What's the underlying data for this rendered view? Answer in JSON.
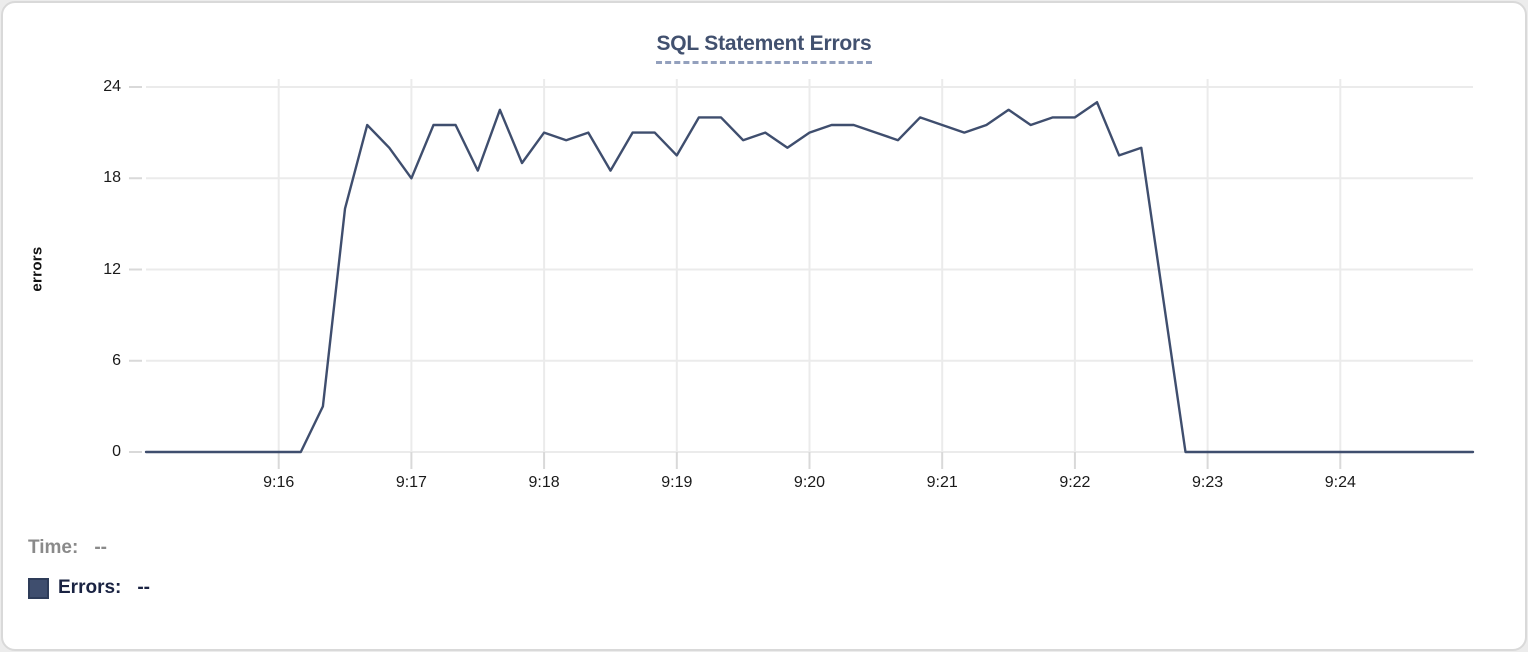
{
  "panel": {
    "title": "SQL Statement Errors"
  },
  "legend": {
    "time_label": "Time:",
    "time_value": "--",
    "errors_label": "Errors:",
    "errors_value": "--"
  },
  "colors": {
    "line": "#3f4e6e",
    "grid": "#ebebeb",
    "tick": "#d9d9d9",
    "axis_text": "#1a1a1a",
    "title": "#42516f",
    "title_underline": "#93a0bd",
    "legend_time": "#8a8a8a",
    "legend_errors": "#1a2342",
    "swatch_fill": "#3f4e6e",
    "swatch_border": "#2e3c59"
  },
  "chart_data": {
    "type": "line",
    "title": "SQL Statement Errors",
    "xlabel": "",
    "ylabel": "errors",
    "ylim": [
      0,
      24
    ],
    "y_ticks": [
      0,
      6,
      12,
      18,
      24
    ],
    "x_tick_labels": [
      "9:16",
      "9:17",
      "9:18",
      "9:19",
      "9:20",
      "9:21",
      "9:22",
      "9:23",
      "9:24"
    ],
    "x_range": [
      "9:15:00",
      "9:25:00"
    ],
    "grid": true,
    "legend_position": "bottom-left",
    "series": [
      {
        "name": "Errors",
        "x": [
          "9:15:00",
          "9:15:10",
          "9:15:20",
          "9:15:30",
          "9:15:40",
          "9:15:50",
          "9:16:00",
          "9:16:10",
          "9:16:20",
          "9:16:30",
          "9:16:40",
          "9:16:50",
          "9:17:00",
          "9:17:10",
          "9:17:20",
          "9:17:30",
          "9:17:40",
          "9:17:50",
          "9:18:00",
          "9:18:10",
          "9:18:20",
          "9:18:30",
          "9:18:40",
          "9:18:50",
          "9:19:00",
          "9:19:10",
          "9:19:20",
          "9:19:30",
          "9:19:40",
          "9:19:50",
          "9:20:00",
          "9:20:10",
          "9:20:20",
          "9:20:30",
          "9:20:40",
          "9:20:50",
          "9:21:00",
          "9:21:10",
          "9:21:20",
          "9:21:30",
          "9:21:40",
          "9:21:50",
          "9:22:00",
          "9:22:10",
          "9:22:20",
          "9:22:30",
          "9:22:40",
          "9:22:50",
          "9:23:00",
          "9:23:10",
          "9:23:20",
          "9:23:30",
          "9:23:40",
          "9:23:50",
          "9:24:00",
          "9:24:10",
          "9:24:20",
          "9:24:30",
          "9:24:40",
          "9:24:50",
          "9:25:00"
        ],
        "values": [
          0,
          0,
          0,
          0,
          0,
          0,
          0,
          0,
          3,
          16,
          21.5,
          20,
          18,
          21.5,
          21.5,
          18.5,
          22.5,
          19,
          21,
          20.5,
          21,
          18.5,
          21,
          21,
          19.5,
          22,
          22,
          20.5,
          21,
          20,
          21,
          21.5,
          21.5,
          21,
          20.5,
          22,
          21.5,
          21,
          21.5,
          22.5,
          21.5,
          22,
          22,
          23,
          19.5,
          20,
          10,
          0,
          0,
          0,
          0,
          0,
          0,
          0,
          0,
          0,
          0,
          0,
          0,
          0,
          0
        ]
      }
    ]
  }
}
